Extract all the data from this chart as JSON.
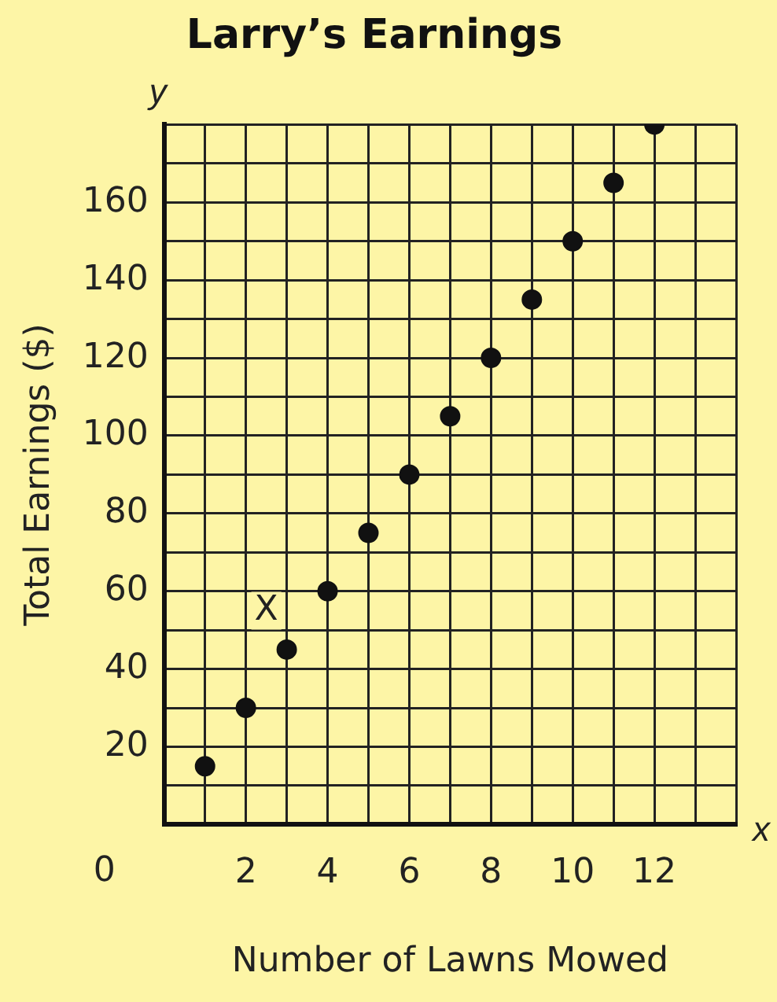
{
  "chart_data": {
    "type": "scatter",
    "title": "Larry’s Earnings",
    "xlabel": "Number of Lawns Mowed",
    "ylabel": "Total Earnings ($)",
    "x": [
      1,
      2,
      3,
      4,
      5,
      6,
      7,
      8,
      9,
      10,
      11,
      12
    ],
    "values": [
      15,
      30,
      45,
      60,
      75,
      90,
      105,
      120,
      135,
      150,
      165,
      180
    ],
    "color": "#111111",
    "marker": "circle",
    "grid": true,
    "xlim": [
      0,
      14
    ],
    "ylim": [
      0,
      180
    ],
    "xticks": [
      {
        "value": 0,
        "label": null
      },
      {
        "value": 1,
        "label": null
      },
      2,
      {
        "value": 3,
        "label": null
      },
      4,
      {
        "value": 5,
        "label": null
      },
      6,
      {
        "value": 7,
        "label": null
      },
      8,
      {
        "value": 9,
        "label": null
      },
      10,
      {
        "value": 11,
        "label": null
      },
      12,
      {
        "value": 13,
        "label": null
      },
      {
        "value": 14,
        "label": null
      }
    ],
    "yticks": [
      {
        "value": 0,
        "label": null
      },
      {
        "value": 10,
        "label": null
      },
      20,
      {
        "value": 30,
        "label": null
      },
      40,
      {
        "value": 50,
        "label": null
      },
      60,
      {
        "value": 70,
        "label": null
      },
      80,
      {
        "value": 90,
        "label": null
      },
      100,
      {
        "value": 110,
        "label": null
      },
      120,
      {
        "value": 130,
        "label": null
      },
      140,
      {
        "value": 150,
        "label": null
      },
      160,
      {
        "value": 170,
        "label": null
      },
      {
        "value": 180,
        "label": null
      }
    ],
    "annotations": [
      "y",
      "x",
      "X",
      "0"
    ]
  }
}
